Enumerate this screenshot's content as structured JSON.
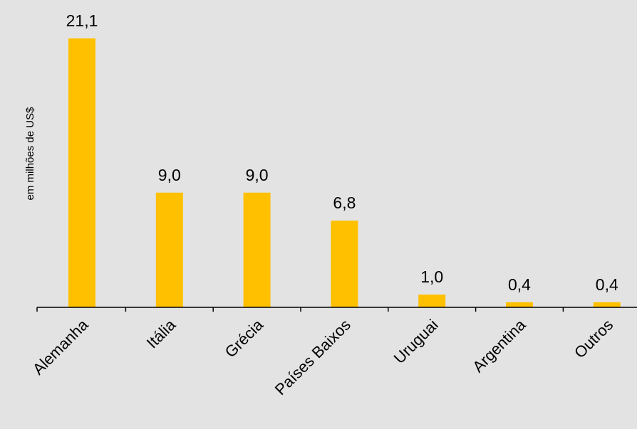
{
  "chart_data": {
    "type": "bar",
    "ylabel": "em milhões de US$",
    "categories": [
      "Alemanha",
      "Itália",
      "Grécia",
      "Países Baixos",
      "Uruguai",
      "Argentina",
      "Outros"
    ],
    "values": [
      21.1,
      9.0,
      9.0,
      6.8,
      1.0,
      0.4,
      0.4
    ],
    "value_labels": [
      "21,1",
      "9,0",
      "9,0",
      "6,8",
      "1,0",
      "0,4",
      "0,4"
    ],
    "ylim": [
      0,
      21.1
    ],
    "grid": false,
    "legend": "none",
    "colors": {
      "bar": "#ffc000",
      "background": "#e3e3e3",
      "axis": "#000000"
    }
  }
}
